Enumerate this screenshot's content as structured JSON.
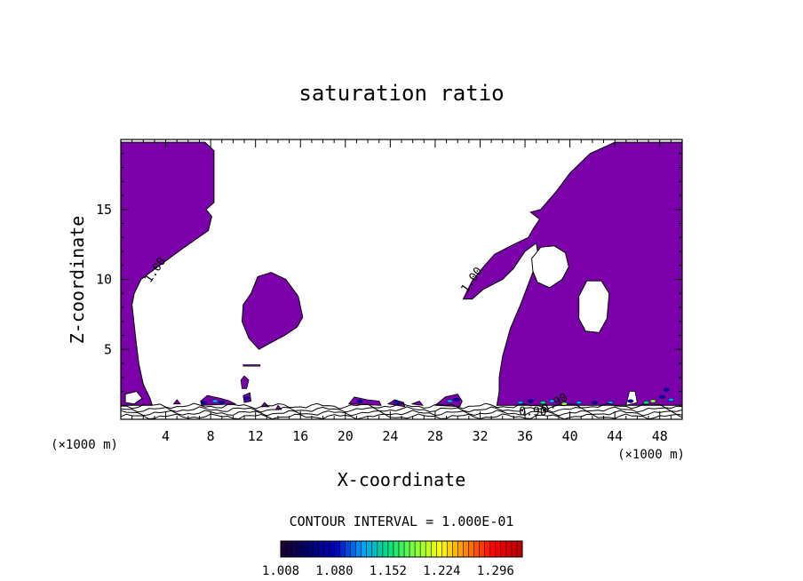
{
  "chart_data": {
    "type": "heatmap",
    "title": "saturation ratio",
    "xlabel": "X-coordinate",
    "ylabel": "Z-coordinate",
    "x_unit": "(×1000 m)",
    "y_unit": "(×1000 m)",
    "xlim": [
      0,
      50
    ],
    "ylim": [
      0,
      20
    ],
    "x_ticks": [
      4,
      8,
      12,
      16,
      20,
      24,
      28,
      32,
      36,
      40,
      44,
      48
    ],
    "y_ticks": [
      5,
      10,
      15
    ],
    "contour_interval_label": "CONTOUR INTERVAL = 1.000E-01",
    "contour_labels": [
      {
        "text": "1.00",
        "x": 3.0,
        "z": 10.7,
        "angle": -55
      },
      {
        "text": "1.00",
        "x": 31.2,
        "z": 10.0,
        "angle": -55
      },
      {
        "text": "0.90",
        "x": 36.7,
        "z": 0.6,
        "angle": 0
      },
      {
        "text": "0.90",
        "x": 38.6,
        "z": 1.2,
        "angle": -30
      }
    ],
    "colorbar": {
      "min": 1.008,
      "max": 1.332,
      "tick_labels": [
        "1.008",
        "1.080",
        "1.152",
        "1.224",
        "1.296"
      ],
      "colors": [
        "#1a0033",
        "#000070",
        "#0000c0",
        "#00a0ff",
        "#00e080",
        "#80ff40",
        "#ffff00",
        "#ff8000",
        "#ff0000",
        "#c00000"
      ]
    },
    "fill_color": "#7b00a9",
    "regions": [
      {
        "name": "left-column",
        "x_range": [
          0,
          8.3
        ],
        "z_range": [
          1.0,
          19.8
        ]
      },
      {
        "name": "cell-12km",
        "x_range": [
          10.8,
          16.2
        ],
        "z_range": [
          5.0,
          10.5
        ]
      },
      {
        "name": "right-region",
        "x_range": [
          30.3,
          50
        ],
        "z_range": [
          1.0,
          19.8
        ]
      }
    ]
  }
}
